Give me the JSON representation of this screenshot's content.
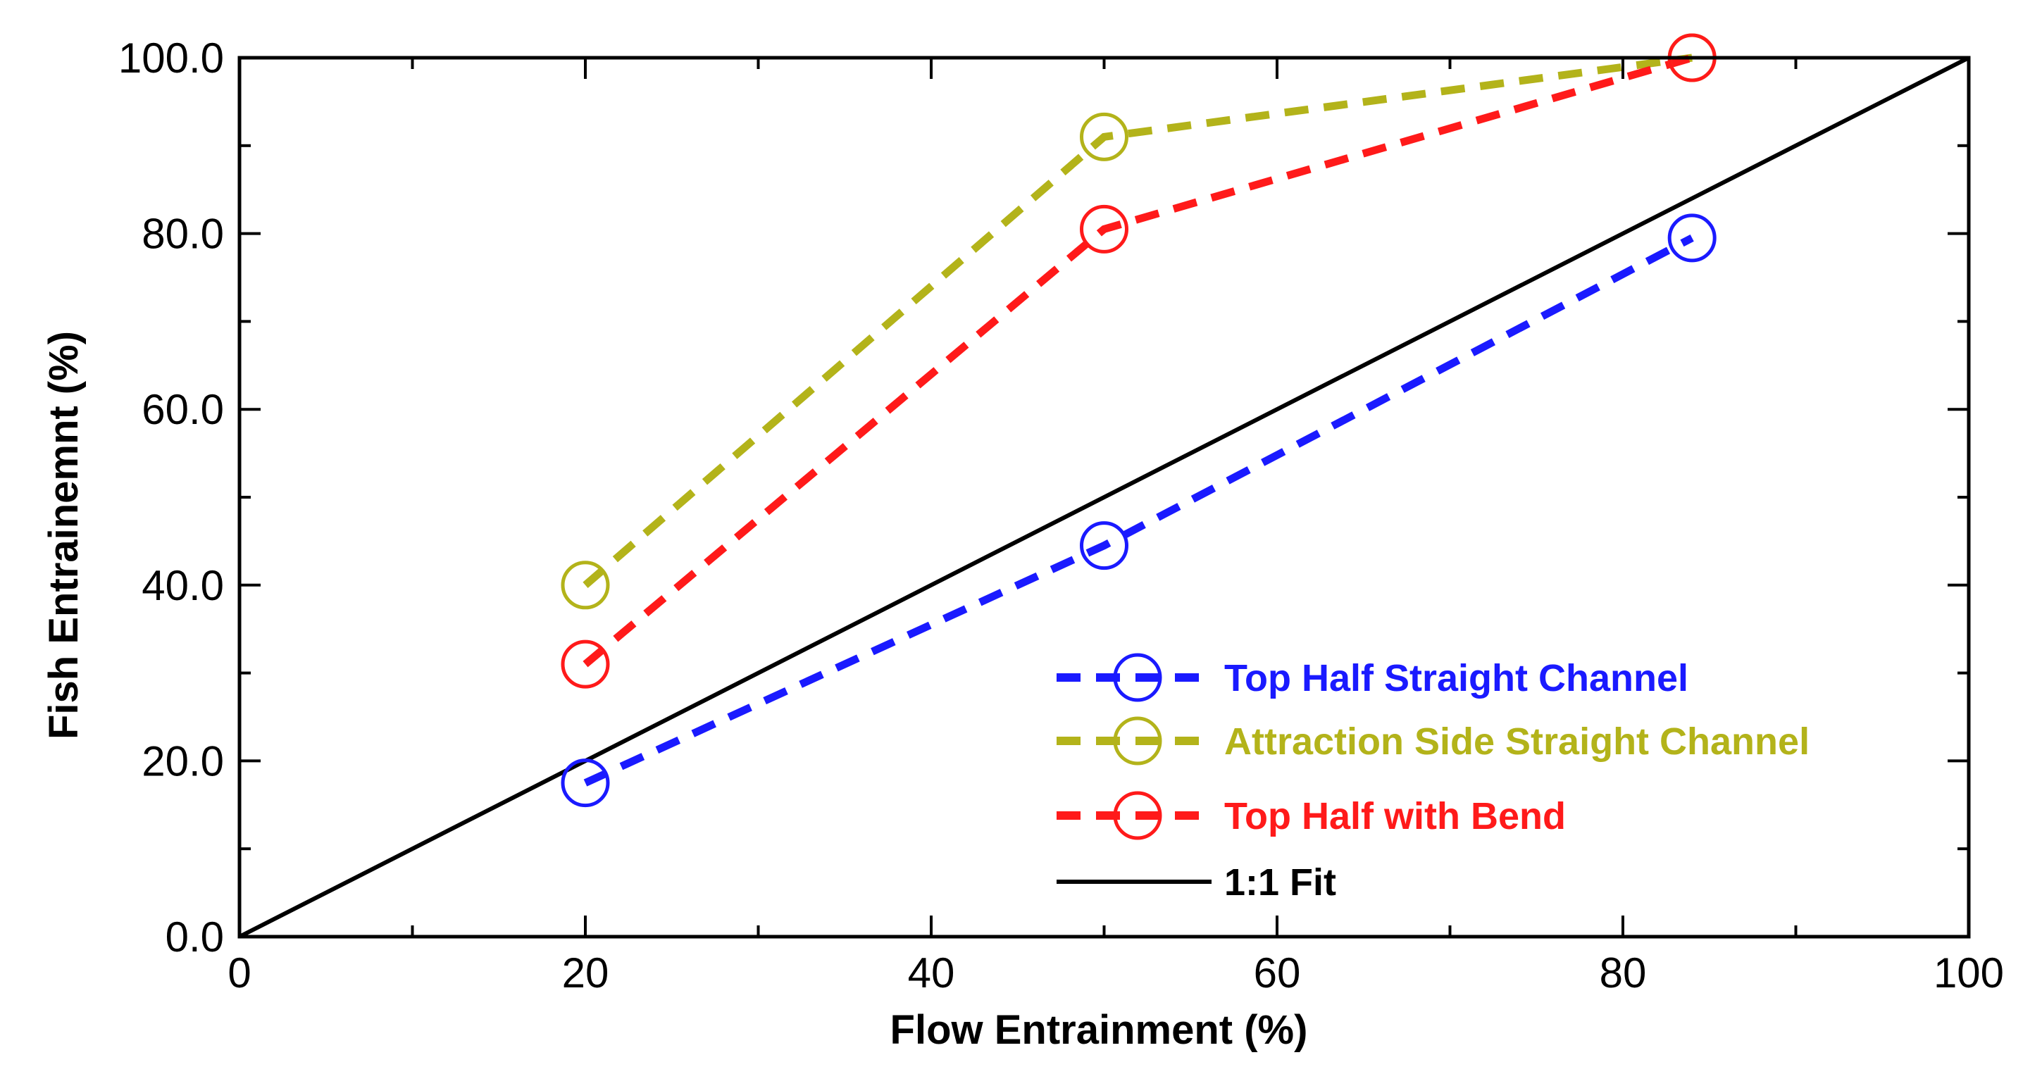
{
  "chart_data": {
    "type": "line",
    "title": "",
    "xlabel": "Flow Entrainment (%)",
    "ylabel": "Fish Entrainemnt (%)",
    "xlim": [
      0,
      100
    ],
    "ylim": [
      0,
      100
    ],
    "x_ticks": [
      0,
      20,
      40,
      60,
      80,
      100
    ],
    "x_tick_labels": [
      "0",
      "20",
      "40",
      "60",
      "80",
      "100"
    ],
    "y_ticks": [
      0,
      20,
      40,
      60,
      80,
      100
    ],
    "y_tick_labels": [
      "0.0",
      "20.0",
      "40.0",
      "60.0",
      "80.0",
      "100.0"
    ],
    "grid": false,
    "legend_position": "bottom-right",
    "series": [
      {
        "name": "Top Half Straight Channel",
        "color": "#1a1aff",
        "line_style": "dashed",
        "marker": "circle",
        "x": [
          20,
          50,
          84
        ],
        "y": [
          17.5,
          44.5,
          79.5
        ]
      },
      {
        "name": "Attraction Side Straight Channel",
        "color": "#b3b31a",
        "line_style": "dashed",
        "marker": "circle",
        "x": [
          20,
          50,
          84
        ],
        "y": [
          40,
          91,
          100
        ]
      },
      {
        "name": "Top Half with Bend",
        "color": "#ff1a1a",
        "line_style": "dashed",
        "marker": "circle",
        "x": [
          20,
          50,
          84
        ],
        "y": [
          31,
          80.5,
          100
        ]
      },
      {
        "name": "1:1 Fit",
        "color": "#000000",
        "line_style": "solid",
        "marker": "none",
        "x": [
          0,
          100
        ],
        "y": [
          0,
          100
        ]
      }
    ]
  }
}
